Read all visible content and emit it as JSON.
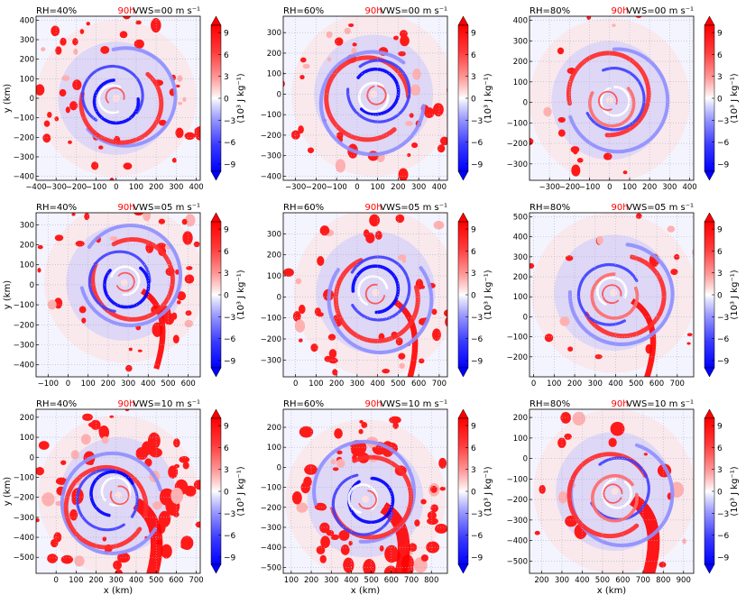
{
  "figure": {
    "colorbar_label": "(10³ J kg⁻¹)",
    "colors": {
      "positive": "#ff0000",
      "negative": "#0000ff",
      "time_label": "#ff0000",
      "grid": "#b0b0c8"
    }
  },
  "chart_data": [
    {
      "type": "heatmap",
      "rh_label": "RH=40%",
      "time_label": "90h",
      "vws_label": "VWS=00 m s⁻¹",
      "xlabel": "",
      "ylabel": "y (km)",
      "xticks": [
        -400,
        -300,
        -200,
        -100,
        0,
        100,
        200,
        300,
        400
      ],
      "yticks": [
        -400,
        -300,
        -200,
        -100,
        0,
        100,
        200,
        300,
        400
      ],
      "xlim": [
        -400,
        420
      ],
      "ylim": [
        -420,
        420
      ],
      "center": [
        0,
        0
      ],
      "colorbar_ticks": [
        9,
        6,
        3,
        0,
        -3,
        -6,
        -9
      ],
      "colorbar_range": [
        -10,
        10
      ],
      "eyewall_sign": "negative"
    },
    {
      "type": "heatmap",
      "rh_label": "RH=60%",
      "time_label": "90h",
      "vws_label": "VWS=00 m s⁻¹",
      "xlabel": "",
      "ylabel": "",
      "xticks": [
        -300,
        -200,
        -100,
        0,
        100,
        200,
        300,
        400
      ],
      "yticks": [
        -400,
        -300,
        -200,
        -100,
        0,
        100,
        200,
        300
      ],
      "xlim": [
        -360,
        440
      ],
      "ylim": [
        -420,
        380
      ],
      "center": [
        80,
        0
      ],
      "colorbar_ticks": [
        9,
        6,
        3,
        0,
        -3,
        -6,
        -9
      ],
      "colorbar_range": [
        -10,
        10
      ],
      "eyewall_sign": "negative"
    },
    {
      "type": "heatmap",
      "rh_label": "RH=80%",
      "time_label": "90h",
      "vws_label": "VWS=00 m s⁻¹",
      "xlabel": "",
      "ylabel": "",
      "xticks": [
        -300,
        -200,
        -100,
        0,
        100,
        200,
        300,
        400
      ],
      "yticks": [
        -300,
        -200,
        -100,
        0,
        100,
        200,
        300,
        400
      ],
      "xlim": [
        -400,
        420
      ],
      "ylim": [
        -380,
        420
      ],
      "center": [
        0,
        10
      ],
      "colorbar_ticks": [
        9,
        6,
        3,
        0,
        -3,
        -6,
        -9
      ],
      "colorbar_range": [
        -10,
        10
      ],
      "eyewall_sign": "mixed"
    },
    {
      "type": "heatmap",
      "rh_label": "RH=40%",
      "time_label": "90h",
      "vws_label": "VWS=05 m s⁻¹",
      "xlabel": "",
      "ylabel": "y (km)",
      "xticks": [
        -100,
        0,
        100,
        200,
        300,
        400,
        500,
        600
      ],
      "yticks": [
        -400,
        -300,
        -200,
        -100,
        0,
        100,
        200,
        300
      ],
      "xlim": [
        -160,
        660
      ],
      "ylim": [
        -460,
        360
      ],
      "center": [
        280,
        10
      ],
      "colorbar_ticks": [
        9,
        6,
        3,
        0,
        -3,
        -6,
        -9
      ],
      "colorbar_range": [
        -10,
        10
      ],
      "eyewall_sign": "negative"
    },
    {
      "type": "heatmap",
      "rh_label": "RH=60%",
      "time_label": "90h",
      "vws_label": "VWS=05 m s⁻¹",
      "xlabel": "",
      "ylabel": "",
      "xticks": [
        0,
        100,
        200,
        300,
        400,
        500,
        600,
        700
      ],
      "yticks": [
        -300,
        -200,
        -100,
        0,
        100,
        200,
        300
      ],
      "xlim": [
        -60,
        740
      ],
      "ylim": [
        -380,
        400
      ],
      "center": [
        390,
        20
      ],
      "colorbar_ticks": [
        9,
        6,
        3,
        0,
        -3,
        -6,
        -9
      ],
      "colorbar_range": [
        -10,
        10
      ],
      "eyewall_sign": "negative"
    },
    {
      "type": "heatmap",
      "rh_label": "RH=80%",
      "time_label": "90h",
      "vws_label": "VWS=05 m s⁻¹",
      "xlabel": "",
      "ylabel": "",
      "xticks": [
        0,
        100,
        200,
        300,
        400,
        500,
        600,
        700
      ],
      "yticks": [
        -200,
        -100,
        0,
        100,
        200,
        300,
        400,
        500
      ],
      "xlim": [
        -20,
        780
      ],
      "ylim": [
        -300,
        520
      ],
      "center": [
        390,
        120
      ],
      "colorbar_ticks": [
        9,
        6,
        3,
        0,
        -3,
        -6,
        -9
      ],
      "colorbar_range": [
        -10,
        10
      ],
      "eyewall_sign": "mixed"
    },
    {
      "type": "heatmap",
      "rh_label": "RH=40%",
      "time_label": "90h",
      "vws_label": "VWS=10 m s⁻¹",
      "xlabel": "x (km)",
      "ylabel": "y (km)",
      "xticks": [
        0,
        100,
        200,
        300,
        400,
        500,
        600,
        700
      ],
      "yticks": [
        -500,
        -400,
        -300,
        -200,
        -100,
        0,
        100,
        200
      ],
      "xlim": [
        -100,
        720
      ],
      "ylim": [
        -580,
        240
      ],
      "center": [
        310,
        -190
      ],
      "colorbar_ticks": [
        9,
        6,
        3,
        0,
        -3,
        -6,
        -9
      ],
      "colorbar_range": [
        -10,
        10
      ],
      "eyewall_sign": "negative"
    },
    {
      "type": "heatmap",
      "rh_label": "RH=60%",
      "time_label": "90h",
      "vws_label": "VWS=10 m s⁻¹",
      "xlabel": "x (km)",
      "ylabel": "",
      "xticks": [
        100,
        200,
        300,
        400,
        500,
        600,
        700,
        800
      ],
      "yticks": [
        -500,
        -400,
        -300,
        -200,
        -100,
        0,
        100,
        200
      ],
      "xlim": [
        60,
        880
      ],
      "ylim": [
        -530,
        290
      ],
      "center": [
        470,
        -160
      ],
      "colorbar_ticks": [
        9,
        6,
        3,
        0,
        -3,
        -6,
        -9
      ],
      "colorbar_range": [
        -10,
        10
      ],
      "eyewall_sign": "negative"
    },
    {
      "type": "heatmap",
      "rh_label": "RH=80%",
      "time_label": "90h",
      "vws_label": "VWS=10 m s⁻¹",
      "xlabel": "x (km)",
      "ylabel": "",
      "xticks": [
        200,
        300,
        400,
        500,
        600,
        700,
        800,
        900
      ],
      "yticks": [
        -500,
        -400,
        -300,
        -200,
        -100,
        0,
        100,
        200
      ],
      "xlim": [
        140,
        950
      ],
      "ylim": [
        -560,
        240
      ],
      "center": [
        560,
        -160
      ],
      "colorbar_ticks": [
        9,
        6,
        3,
        0,
        -3,
        -6,
        -9
      ],
      "colorbar_range": [
        -10,
        10
      ],
      "eyewall_sign": "mixed"
    }
  ]
}
